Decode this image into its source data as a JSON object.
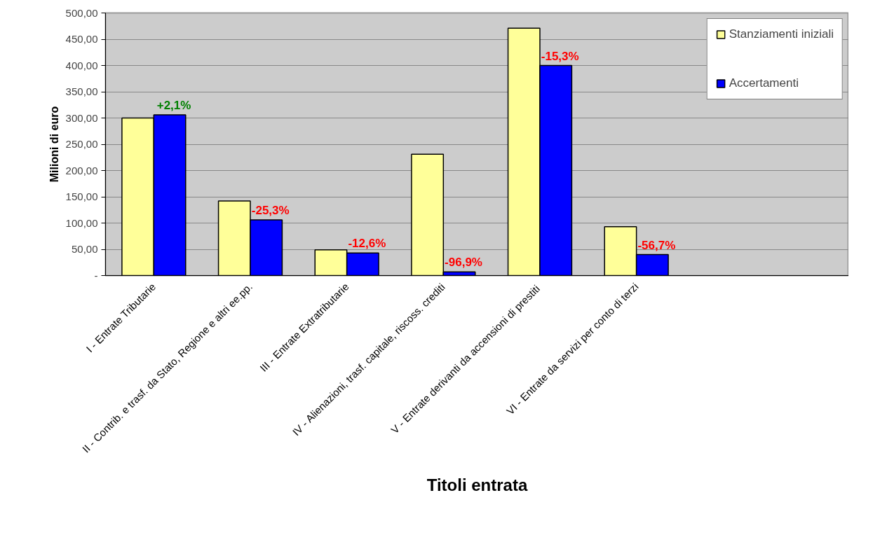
{
  "chart_data": {
    "type": "bar",
    "xlabel": "Titoli entrata",
    "ylabel": "Milioni di euro",
    "categories": [
      "I - Entrate Tributarie",
      "II - Contrib. e trasf. da Stato, Regione e altri ee.pp.",
      "III - Entrate Extratributarie",
      "IV - Alienazioni, trasf. capitale, riscoss. crediti",
      "V - Entrate derivanti da accensioni  di prestiti",
      "VI - Entrate da servizi per conto di terzi"
    ],
    "series": [
      {
        "name": "Stanziamenti iniziali",
        "color": "#ffff99",
        "values": [
          300,
          142,
          49,
          231,
          471,
          93
        ]
      },
      {
        "name": "Accertamenti",
        "color": "#0000ff",
        "values": [
          306,
          106,
          43,
          7,
          400,
          40
        ]
      }
    ],
    "annotations": [
      {
        "text": "+2,1%",
        "x": "I - Entrate Tributarie",
        "y": 306
      },
      {
        "text": "-25,3%",
        "x": "II - Contrib. e trasf. da Stato, Regione e altri ee.pp.",
        "y": 106
      },
      {
        "text": "-12,6%",
        "x": "III - Entrate Extratributarie",
        "y": 43
      },
      {
        "text": "-96,9%",
        "x": "IV - Alienazioni, trasf. capitale, riscoss. crediti",
        "y": 7
      },
      {
        "text": "-15,3%",
        "x": "V - Entrate derivanti da accensioni  di prestiti",
        "y": 400
      },
      {
        "text": "-56,7%",
        "x": "VI - Entrate da servizi per conto di terzi",
        "y": 40
      }
    ],
    "ylim": [
      0,
      500
    ],
    "yticks": [
      {
        "value": 0,
        "label": "-"
      },
      {
        "value": 50,
        "label": "50,00"
      },
      {
        "value": 100,
        "label": "100,00"
      },
      {
        "value": 150,
        "label": "150,00"
      },
      {
        "value": 200,
        "label": "200,00"
      },
      {
        "value": 250,
        "label": "250,00"
      },
      {
        "value": 300,
        "label": "300,00"
      },
      {
        "value": 350,
        "label": "350,00"
      },
      {
        "value": 400,
        "label": "400,00"
      },
      {
        "value": 450,
        "label": "450,00"
      },
      {
        "value": 500,
        "label": "500,00"
      }
    ],
    "grid": "y",
    "legend": "right"
  }
}
